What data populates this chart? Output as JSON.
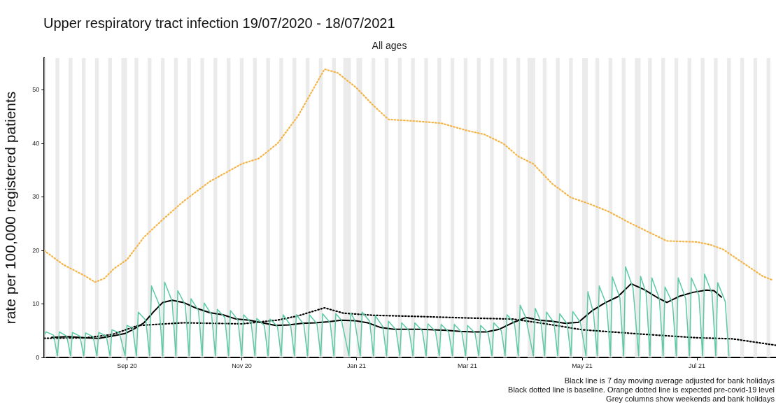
{
  "chart_data": {
    "type": "line",
    "title": "Upper respiratory tract infection 19/07/2020 - 18/07/2021",
    "subtitle": "All ages",
    "ylabel": "rate per 100,000 registered patients",
    "xlim": [
      "2020-07-19",
      "2021-08-12"
    ],
    "xticks": [
      {
        "value": "2020-09-01",
        "label": "Sep 20"
      },
      {
        "value": "2020-11-01",
        "label": "Nov 20"
      },
      {
        "value": "2021-01-01",
        "label": "Jan 21"
      },
      {
        "value": "2021-03-01",
        "label": "Mar 21"
      },
      {
        "value": "2021-05-01",
        "label": "May 21"
      },
      {
        "value": "2021-07-01",
        "label": "Jul 21"
      }
    ],
    "ylim": [
      0,
      56
    ],
    "yticks": [
      0,
      10,
      20,
      30,
      40,
      50
    ],
    "grid": false,
    "legend": false,
    "marker": "none",
    "series": [
      {
        "color": "#5cc9a7",
        "line_style": "solid",
        "x": [
          "2020-07-19",
          "2020-07-20",
          "2020-07-24",
          "2020-07-26",
          "2020-07-27",
          "2020-07-31",
          "2020-08-02",
          "2020-08-03",
          "2020-08-07",
          "2020-08-09",
          "2020-08-10",
          "2020-08-14",
          "2020-08-16",
          "2020-08-17",
          "2020-08-21",
          "2020-08-23",
          "2020-08-24",
          "2020-08-28",
          "2020-08-31",
          "2020-09-01",
          "2020-09-04",
          "2020-09-06",
          "2020-09-07",
          "2020-09-11",
          "2020-09-13",
          "2020-09-14",
          "2020-09-18",
          "2020-09-20",
          "2020-09-21",
          "2020-09-25",
          "2020-09-27",
          "2020-09-28",
          "2020-10-02",
          "2020-10-04",
          "2020-10-05",
          "2020-10-09",
          "2020-10-11",
          "2020-10-12",
          "2020-10-16",
          "2020-10-18",
          "2020-10-19",
          "2020-10-23",
          "2020-10-25",
          "2020-10-26",
          "2020-10-30",
          "2020-11-01",
          "2020-11-02",
          "2020-11-06",
          "2020-11-08",
          "2020-11-09",
          "2020-11-13",
          "2020-11-15",
          "2020-11-16",
          "2020-11-20",
          "2020-11-22",
          "2020-11-23",
          "2020-11-27",
          "2020-11-29",
          "2020-11-30",
          "2020-12-04",
          "2020-12-06",
          "2020-12-07",
          "2020-12-11",
          "2020-12-13",
          "2020-12-14",
          "2020-12-18",
          "2020-12-20",
          "2020-12-21",
          "2020-12-24",
          "2020-12-28",
          "2020-12-29",
          "2020-12-31",
          "2021-01-03",
          "2021-01-04",
          "2021-01-08",
          "2021-01-10",
          "2021-01-11",
          "2021-01-15",
          "2021-01-17",
          "2021-01-18",
          "2021-01-22",
          "2021-01-24",
          "2021-01-25",
          "2021-01-29",
          "2021-01-31",
          "2021-02-01",
          "2021-02-05",
          "2021-02-07",
          "2021-02-08",
          "2021-02-12",
          "2021-02-14",
          "2021-02-15",
          "2021-02-19",
          "2021-02-21",
          "2021-02-22",
          "2021-02-26",
          "2021-02-28",
          "2021-03-01",
          "2021-03-05",
          "2021-03-07",
          "2021-03-08",
          "2021-03-12",
          "2021-03-14",
          "2021-03-15",
          "2021-03-19",
          "2021-03-21",
          "2021-03-22",
          "2021-03-26",
          "2021-03-28",
          "2021-03-29",
          "2021-04-01",
          "2021-04-05",
          "2021-04-06",
          "2021-04-09",
          "2021-04-11",
          "2021-04-12",
          "2021-04-16",
          "2021-04-18",
          "2021-04-19",
          "2021-04-23",
          "2021-04-25",
          "2021-04-26",
          "2021-04-30",
          "2021-05-03",
          "2021-05-04",
          "2021-05-07",
          "2021-05-09",
          "2021-05-10",
          "2021-05-14",
          "2021-05-16",
          "2021-05-17",
          "2021-05-21",
          "2021-05-23",
          "2021-05-24",
          "2021-05-28",
          "2021-05-31",
          "2021-06-01",
          "2021-06-04",
          "2021-06-06",
          "2021-06-07",
          "2021-06-11",
          "2021-06-13",
          "2021-06-14",
          "2021-06-18",
          "2021-06-20",
          "2021-06-21",
          "2021-06-25",
          "2021-06-27",
          "2021-06-28",
          "2021-07-02",
          "2021-07-04",
          "2021-07-05",
          "2021-07-09",
          "2021-07-11",
          "2021-07-12",
          "2021-07-16",
          "2021-07-18"
        ],
        "values": [
          4.3,
          4.8,
          4.2,
          0.3,
          4.8,
          4.0,
          0.3,
          4.7,
          4.0,
          0.3,
          4.6,
          3.9,
          0.3,
          4.7,
          4.0,
          0.3,
          5.2,
          4.6,
          0.3,
          6.0,
          5.5,
          0.3,
          8.5,
          7.0,
          0.3,
          13.4,
          10.0,
          0.3,
          14.1,
          10.5,
          0.3,
          12.5,
          9.8,
          0.3,
          11.0,
          8.8,
          0.3,
          10.2,
          8.0,
          0.3,
          9.0,
          7.5,
          0.3,
          8.8,
          7.0,
          0.3,
          8.0,
          6.5,
          0.3,
          7.3,
          6.0,
          0.3,
          7.2,
          5.8,
          0.3,
          8.0,
          6.0,
          0.3,
          8.0,
          6.2,
          0.3,
          8.0,
          6.3,
          0.3,
          8.2,
          6.5,
          0.3,
          8.2,
          7.0,
          0.3,
          8.3,
          7.0,
          0.3,
          8.5,
          6.8,
          0.3,
          7.8,
          5.8,
          0.3,
          6.8,
          5.2,
          0.3,
          6.5,
          5.0,
          0.3,
          6.5,
          5.0,
          0.3,
          6.3,
          4.9,
          0.3,
          6.2,
          4.8,
          0.3,
          6.2,
          4.7,
          0.3,
          6.0,
          4.6,
          0.3,
          6.0,
          4.6,
          0.3,
          6.5,
          5.0,
          0.3,
          8.0,
          6.4,
          0.3,
          9.8,
          7.5,
          0.3,
          9.2,
          6.8,
          0.3,
          8.5,
          6.5,
          0.3,
          8.2,
          6.3,
          0.3,
          8.6,
          6.6,
          0.3,
          12.3,
          8.3,
          0.3,
          13.4,
          9.8,
          0.3,
          15.1,
          11.2,
          0.3,
          17.0,
          13.0,
          0.3,
          15.2,
          12.0,
          0.3,
          14.9,
          11.0,
          0.3,
          13.2,
          10.2,
          0.3,
          14.9,
          11.0,
          0.3,
          14.9,
          11.7,
          0.3,
          15.6,
          12.0,
          0.3,
          14.0,
          10.5,
          0.3
        ]
      },
      {
        "color": "#f5b445",
        "line_style": "dotted",
        "x": [
          "2020-07-19",
          "2020-07-29",
          "2020-08-10",
          "2020-08-15",
          "2020-08-20",
          "2020-08-25",
          "2020-09-01",
          "2020-09-10",
          "2020-09-20",
          "2020-10-01",
          "2020-10-15",
          "2020-11-01",
          "2020-11-10",
          "2020-11-20",
          "2020-12-01",
          "2020-12-10",
          "2020-12-15",
          "2020-12-22",
          "2021-01-01",
          "2021-01-10",
          "2021-01-18",
          "2021-02-01",
          "2021-02-15",
          "2021-03-01",
          "2021-03-10",
          "2021-03-20",
          "2021-03-28",
          "2021-04-05",
          "2021-04-15",
          "2021-04-25",
          "2021-05-05",
          "2021-05-15",
          "2021-05-25",
          "2021-06-05",
          "2021-06-15",
          "2021-07-01",
          "2021-07-08",
          "2021-07-15",
          "2021-07-25",
          "2021-08-05",
          "2021-08-10"
        ],
        "values": [
          20.0,
          17.4,
          15.2,
          14.1,
          14.8,
          16.6,
          18.3,
          22.5,
          25.8,
          29.2,
          32.9,
          36.2,
          37.2,
          40.0,
          45.2,
          50.8,
          53.9,
          53.2,
          50.4,
          47.1,
          44.5,
          44.2,
          43.8,
          42.4,
          41.7,
          40.0,
          37.6,
          36.2,
          32.5,
          29.9,
          28.7,
          27.3,
          25.4,
          23.5,
          21.8,
          21.6,
          21.1,
          20.2,
          17.8,
          15.2,
          14.5
        ]
      },
      {
        "color": "#000000",
        "line_style": "dotted",
        "x": [
          "2020-07-19",
          "2020-08-10",
          "2020-08-24",
          "2020-09-07",
          "2020-10-01",
          "2020-11-01",
          "2020-11-20",
          "2020-12-01",
          "2020-12-15",
          "2020-12-25",
          "2021-01-10",
          "2021-02-01",
          "2021-03-01",
          "2021-03-25",
          "2021-04-10",
          "2021-05-01",
          "2021-06-01",
          "2021-07-01",
          "2021-07-20",
          "2021-08-12"
        ],
        "values": [
          3.6,
          3.7,
          4.3,
          6.0,
          6.5,
          6.3,
          7.0,
          7.8,
          9.3,
          8.3,
          7.9,
          7.7,
          7.4,
          7.2,
          6.4,
          5.2,
          4.4,
          3.7,
          3.5,
          2.3
        ]
      },
      {
        "color": "#000000",
        "line_style": "solid",
        "x": [
          "2020-07-23",
          "2020-08-01",
          "2020-08-10",
          "2020-08-17",
          "2020-08-24",
          "2020-08-31",
          "2020-09-05",
          "2020-09-10",
          "2020-09-15",
          "2020-09-20",
          "2020-09-25",
          "2020-10-01",
          "2020-10-08",
          "2020-10-15",
          "2020-10-22",
          "2020-10-29",
          "2020-11-05",
          "2020-11-12",
          "2020-11-19",
          "2020-11-26",
          "2020-12-03",
          "2020-12-10",
          "2020-12-17",
          "2020-12-24",
          "2020-12-31",
          "2021-01-07",
          "2021-01-14",
          "2021-01-21",
          "2021-01-28",
          "2021-02-04",
          "2021-02-11",
          "2021-02-18",
          "2021-02-25",
          "2021-03-04",
          "2021-03-11",
          "2021-03-18",
          "2021-03-25",
          "2021-04-01",
          "2021-04-08",
          "2021-04-15",
          "2021-04-22",
          "2021-04-29",
          "2021-05-06",
          "2021-05-13",
          "2021-05-20",
          "2021-05-27",
          "2021-06-03",
          "2021-06-10",
          "2021-06-15",
          "2021-06-22",
          "2021-06-29",
          "2021-07-06",
          "2021-07-10",
          "2021-07-14"
        ],
        "values": [
          3.8,
          3.9,
          3.7,
          3.6,
          4.0,
          4.5,
          5.4,
          6.5,
          8.5,
          10.3,
          10.7,
          10.3,
          9.2,
          8.4,
          8.0,
          7.2,
          7.0,
          6.5,
          6.0,
          6.1,
          6.4,
          6.5,
          6.7,
          7.0,
          6.9,
          6.5,
          5.6,
          5.3,
          5.3,
          5.3,
          5.2,
          5.1,
          4.9,
          4.8,
          4.8,
          5.3,
          6.5,
          7.5,
          7.0,
          6.8,
          6.4,
          6.6,
          8.7,
          10.2,
          11.4,
          13.8,
          12.7,
          11.2,
          10.3,
          11.5,
          12.2,
          12.6,
          12.5,
          11.3
        ]
      }
    ],
    "bands": [
      {
        "axis": "x",
        "from": "2020-07-19",
        "to": "2020-07-20",
        "color": "#ebebeb"
      },
      {
        "axis": "x",
        "from": "2020-07-25",
        "to": "2020-07-27",
        "color": "#ebebeb"
      },
      {
        "axis": "x",
        "from": "2020-08-01",
        "to": "2020-08-03",
        "color": "#ebebeb"
      },
      {
        "axis": "x",
        "from": "2020-08-08",
        "to": "2020-08-10",
        "color": "#ebebeb"
      },
      {
        "axis": "x",
        "from": "2020-08-15",
        "to": "2020-08-17",
        "color": "#ebebeb"
      },
      {
        "axis": "x",
        "from": "2020-08-22",
        "to": "2020-08-24",
        "color": "#ebebeb"
      },
      {
        "axis": "x",
        "from": "2020-08-29",
        "to": "2020-09-01",
        "color": "#ebebeb"
      },
      {
        "axis": "x",
        "from": "2020-09-05",
        "to": "2020-09-07",
        "color": "#ebebeb"
      },
      {
        "axis": "x",
        "from": "2020-09-12",
        "to": "2020-09-14",
        "color": "#ebebeb"
      },
      {
        "axis": "x",
        "from": "2020-09-19",
        "to": "2020-09-21",
        "color": "#ebebeb"
      },
      {
        "axis": "x",
        "from": "2020-09-26",
        "to": "2020-09-28",
        "color": "#ebebeb"
      },
      {
        "axis": "x",
        "from": "2020-10-03",
        "to": "2020-10-05",
        "color": "#ebebeb"
      },
      {
        "axis": "x",
        "from": "2020-10-10",
        "to": "2020-10-12",
        "color": "#ebebeb"
      },
      {
        "axis": "x",
        "from": "2020-10-17",
        "to": "2020-10-19",
        "color": "#ebebeb"
      },
      {
        "axis": "x",
        "from": "2020-10-24",
        "to": "2020-10-26",
        "color": "#ebebeb"
      },
      {
        "axis": "x",
        "from": "2020-10-31",
        "to": "2020-11-02",
        "color": "#ebebeb"
      },
      {
        "axis": "x",
        "from": "2020-11-07",
        "to": "2020-11-09",
        "color": "#ebebeb"
      },
      {
        "axis": "x",
        "from": "2020-11-14",
        "to": "2020-11-16",
        "color": "#ebebeb"
      },
      {
        "axis": "x",
        "from": "2020-11-21",
        "to": "2020-11-23",
        "color": "#ebebeb"
      },
      {
        "axis": "x",
        "from": "2020-11-28",
        "to": "2020-11-30",
        "color": "#ebebeb"
      },
      {
        "axis": "x",
        "from": "2020-12-05",
        "to": "2020-12-07",
        "color": "#ebebeb"
      },
      {
        "axis": "x",
        "from": "2020-12-12",
        "to": "2020-12-14",
        "color": "#ebebeb"
      },
      {
        "axis": "x",
        "from": "2020-12-19",
        "to": "2020-12-21",
        "color": "#ebebeb"
      },
      {
        "axis": "x",
        "from": "2020-12-25",
        "to": "2020-12-29",
        "color": "#ebebeb"
      },
      {
        "axis": "x",
        "from": "2021-01-01",
        "to": "2021-01-04",
        "color": "#ebebeb"
      },
      {
        "axis": "x",
        "from": "2021-01-09",
        "to": "2021-01-11",
        "color": "#ebebeb"
      },
      {
        "axis": "x",
        "from": "2021-01-16",
        "to": "2021-01-18",
        "color": "#ebebeb"
      },
      {
        "axis": "x",
        "from": "2021-01-23",
        "to": "2021-01-25",
        "color": "#ebebeb"
      },
      {
        "axis": "x",
        "from": "2021-01-30",
        "to": "2021-02-01",
        "color": "#ebebeb"
      },
      {
        "axis": "x",
        "from": "2021-02-06",
        "to": "2021-02-08",
        "color": "#ebebeb"
      },
      {
        "axis": "x",
        "from": "2021-02-13",
        "to": "2021-02-15",
        "color": "#ebebeb"
      },
      {
        "axis": "x",
        "from": "2021-02-20",
        "to": "2021-02-22",
        "color": "#ebebeb"
      },
      {
        "axis": "x",
        "from": "2021-02-27",
        "to": "2021-03-01",
        "color": "#ebebeb"
      },
      {
        "axis": "x",
        "from": "2021-03-06",
        "to": "2021-03-08",
        "color": "#ebebeb"
      },
      {
        "axis": "x",
        "from": "2021-03-13",
        "to": "2021-03-15",
        "color": "#ebebeb"
      },
      {
        "axis": "x",
        "from": "2021-03-20",
        "to": "2021-03-22",
        "color": "#ebebeb"
      },
      {
        "axis": "x",
        "from": "2021-03-27",
        "to": "2021-03-29",
        "color": "#ebebeb"
      },
      {
        "axis": "x",
        "from": "2021-04-02",
        "to": "2021-04-06",
        "color": "#ebebeb"
      },
      {
        "axis": "x",
        "from": "2021-04-10",
        "to": "2021-04-12",
        "color": "#ebebeb"
      },
      {
        "axis": "x",
        "from": "2021-04-17",
        "to": "2021-04-19",
        "color": "#ebebeb"
      },
      {
        "axis": "x",
        "from": "2021-04-24",
        "to": "2021-04-26",
        "color": "#ebebeb"
      },
      {
        "axis": "x",
        "from": "2021-05-01",
        "to": "2021-05-04",
        "color": "#ebebeb"
      },
      {
        "axis": "x",
        "from": "2021-05-08",
        "to": "2021-05-10",
        "color": "#ebebeb"
      },
      {
        "axis": "x",
        "from": "2021-05-15",
        "to": "2021-05-17",
        "color": "#ebebeb"
      },
      {
        "axis": "x",
        "from": "2021-05-22",
        "to": "2021-05-24",
        "color": "#ebebeb"
      },
      {
        "axis": "x",
        "from": "2021-05-29",
        "to": "2021-06-01",
        "color": "#ebebeb"
      },
      {
        "axis": "x",
        "from": "2021-06-05",
        "to": "2021-06-07",
        "color": "#ebebeb"
      },
      {
        "axis": "x",
        "from": "2021-06-12",
        "to": "2021-06-14",
        "color": "#ebebeb"
      },
      {
        "axis": "x",
        "from": "2021-06-19",
        "to": "2021-06-21",
        "color": "#ebebeb"
      },
      {
        "axis": "x",
        "from": "2021-06-26",
        "to": "2021-06-28",
        "color": "#ebebeb"
      },
      {
        "axis": "x",
        "from": "2021-07-03",
        "to": "2021-07-05",
        "color": "#ebebeb"
      },
      {
        "axis": "x",
        "from": "2021-07-10",
        "to": "2021-07-12",
        "color": "#ebebeb"
      },
      {
        "axis": "x",
        "from": "2021-07-17",
        "to": "2021-07-19",
        "color": "#ebebeb"
      },
      {
        "axis": "x",
        "from": "2021-07-24",
        "to": "2021-07-26",
        "color": "#ebebeb"
      },
      {
        "axis": "x",
        "from": "2021-07-31",
        "to": "2021-08-02",
        "color": "#ebebeb"
      },
      {
        "axis": "x",
        "from": "2021-08-07",
        "to": "2021-08-09",
        "color": "#ebebeb"
      }
    ],
    "annotations": [
      "Black line is 7 day moving average adjusted for bank holidays",
      "Black dotted line is baseline. Orange dotted line is expected pre-covid-19 level",
      "Grey columns show weekends and bank holidays"
    ]
  }
}
